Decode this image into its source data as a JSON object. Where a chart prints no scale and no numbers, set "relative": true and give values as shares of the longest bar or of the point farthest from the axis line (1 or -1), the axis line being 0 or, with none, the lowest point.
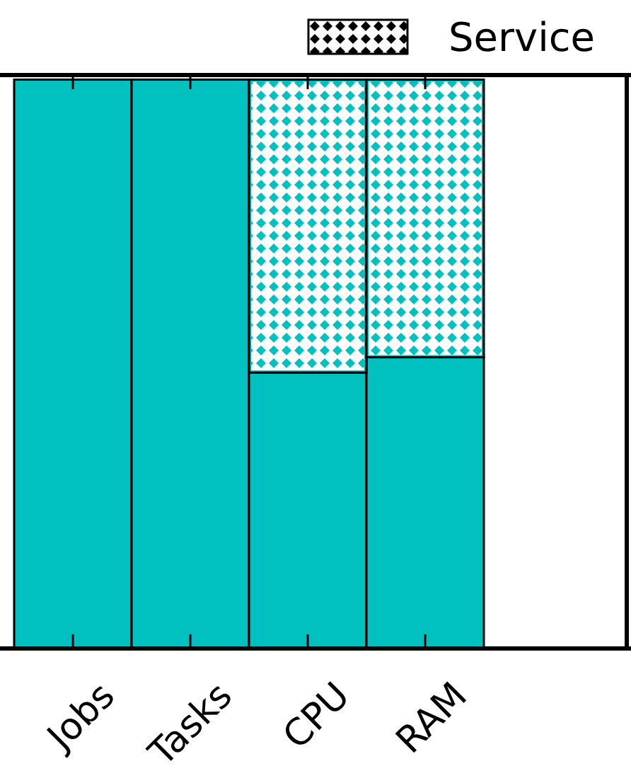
{
  "chart_data": {
    "type": "bar",
    "categories": [
      "Jobs",
      "Tasks",
      "CPU",
      "RAM"
    ],
    "stacked": true,
    "relative": true,
    "legend": "top right",
    "series": [
      {
        "color": "#00c0c0",
        "values": [
          1,
          1,
          0.485,
          0.512
        ]
      },
      {
        "name": "Service",
        "color": "#00c0c0",
        "values": [
          0,
          0,
          0.515,
          0.488
        ]
      }
    ]
  }
}
